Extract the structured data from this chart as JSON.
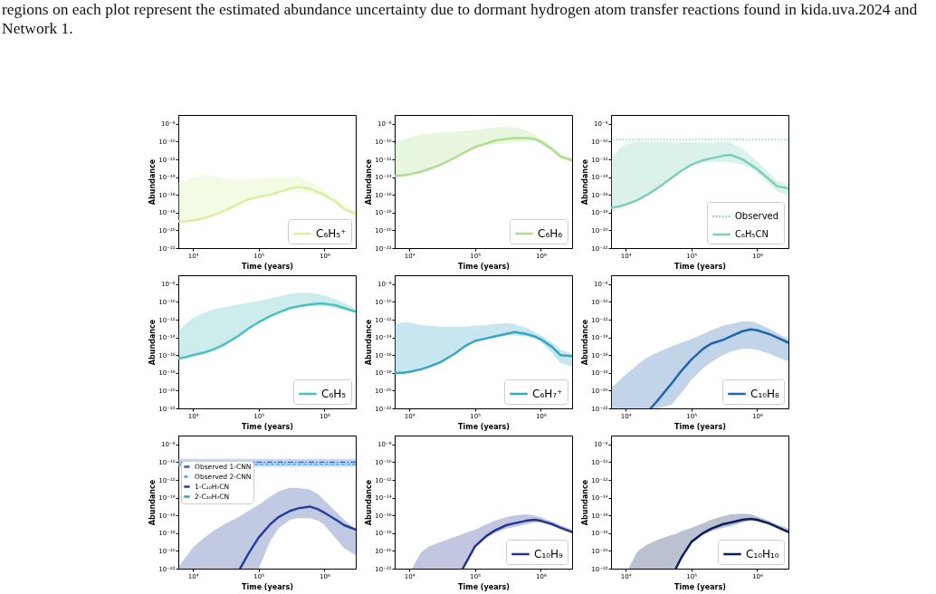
{
  "chart_data": [
    {
      "type": "line",
      "xlabel": "Time (years)",
      "ylabel": "Abundance",
      "log": "xy",
      "legend": "bottom right",
      "annotations": [
        "regions on each plot represent the estimated abundance uncertainty due to dormant hydrogen atom transfer reactions found in kida.uva.2024 and Network 1."
      ],
      "xlim": [
        6000,
        3000000
      ],
      "ylim": [
        1e-22,
        1e-07
      ],
      "xticks": [
        {
          "value": 10000,
          "label": "10⁴"
        },
        {
          "value": 100000,
          "label": "10⁵"
        },
        {
          "value": 1000000,
          "label": "10⁶"
        }
      ],
      "yticks": [
        {
          "value": 1e-22,
          "label": "10⁻²²"
        },
        {
          "value": 1e-20,
          "label": "10⁻²⁰"
        },
        {
          "value": 1e-18,
          "label": "10⁻¹⁸"
        },
        {
          "value": 1e-16,
          "label": "10⁻¹⁶"
        },
        {
          "value": 1e-14,
          "label": "10⁻¹⁴"
        },
        {
          "value": 1e-12,
          "label": "10⁻¹²"
        },
        {
          "value": 1e-10,
          "label": "10⁻¹⁰"
        },
        {
          "value": 1e-08,
          "label": "10⁻⁸"
        }
      ],
      "x": [
        6000,
        8000,
        10000,
        15000,
        20000,
        30000,
        50000,
        70000,
        100000,
        150000,
        200000,
        300000,
        400000,
        600000,
        800000,
        1000000,
        1500000,
        2000000,
        3000000
      ],
      "series": [
        {
          "name": "C₆H₅⁺",
          "color": "#d9f0a3",
          "values": [
            1e-19,
            1e-19,
            1.3e-19,
            2.5e-19,
            5e-19,
            1.6e-18,
            1e-17,
            3.2e-17,
            6.3e-17,
            1e-16,
            2e-16,
            5e-16,
            7.9e-16,
            5e-16,
            2e-16,
            1e-16,
            1.6e-17,
            2.5e-18,
            7.9e-19
          ],
          "lower": [
            1e-19,
            1e-19,
            1.3e-19,
            2.5e-19,
            5e-19,
            1.6e-18,
            1e-17,
            3.2e-17,
            6.3e-17,
            1e-16,
            2e-16,
            2.5e-16,
            2e-16,
            1.6e-16,
            1e-16,
            6.3e-17,
            1e-17,
            1.6e-18,
            5e-19
          ],
          "upper": [
            2.5e-15,
            5e-15,
            1e-14,
            1.6e-14,
            1.3e-14,
            6.3e-15,
            5e-15,
            6.3e-15,
            6.3e-15,
            7.9e-15,
            1e-14,
            1.3e-14,
            1e-14,
            3.2e-15,
            1e-15,
            3.2e-16,
            5e-17,
            6.3e-18,
            1.6e-18
          ]
        }
      ]
    },
    {
      "type": "line",
      "xlabel": "Time (years)",
      "ylabel": "Abundance",
      "log": "xy",
      "legend": "bottom right",
      "xlim": [
        6000,
        3000000
      ],
      "ylim": [
        1e-22,
        1e-07
      ],
      "xticks": [
        {
          "value": 10000,
          "label": "10⁴"
        },
        {
          "value": 100000,
          "label": "10⁵"
        },
        {
          "value": 1000000,
          "label": "10⁶"
        }
      ],
      "yticks": [
        {
          "value": 1e-22,
          "label": "10⁻²²"
        },
        {
          "value": 1e-20,
          "label": "10⁻²⁰"
        },
        {
          "value": 1e-18,
          "label": "10⁻¹⁸"
        },
        {
          "value": 1e-16,
          "label": "10⁻¹⁶"
        },
        {
          "value": 1e-14,
          "label": "10⁻¹⁴"
        },
        {
          "value": 1e-12,
          "label": "10⁻¹²"
        },
        {
          "value": 1e-10,
          "label": "10⁻¹⁰"
        },
        {
          "value": 1e-08,
          "label": "10⁻⁸"
        }
      ],
      "x": [
        6000,
        8000,
        10000,
        15000,
        20000,
        30000,
        50000,
        70000,
        100000,
        150000,
        200000,
        300000,
        400000,
        600000,
        800000,
        1000000,
        1500000,
        2000000,
        3000000
      ],
      "series": [
        {
          "name": "C₆H₆",
          "color": "#addd8e",
          "values": [
            1.3e-14,
            1.6e-14,
            2e-14,
            4e-14,
            7.9e-14,
            2.5e-13,
            1.6e-12,
            6.3e-12,
            2.5e-11,
            6.3e-11,
            1.3e-10,
            2e-10,
            2.5e-10,
            2.5e-10,
            2e-10,
            1e-10,
            1.3e-11,
            2e-12,
            7.9e-13
          ],
          "lower": [
            1.3e-14,
            1.6e-14,
            2e-14,
            4e-14,
            7.9e-14,
            2.5e-13,
            1.6e-12,
            6.3e-12,
            2.5e-11,
            4e-11,
            5e-11,
            6.3e-11,
            7.9e-11,
            1e-10,
            1e-10,
            6.3e-11,
            1e-11,
            1.6e-12,
            5e-13
          ],
          "upper": [
            5e-11,
            1.6e-10,
            3.2e-10,
            6.3e-10,
            7.9e-10,
            1e-09,
            1.3e-09,
            1.6e-09,
            2e-09,
            3.2e-09,
            4e-09,
            5e-09,
            4e-09,
            2e-09,
            6.3e-10,
            2e-10,
            3.2e-11,
            5e-12,
            1.6e-12
          ]
        }
      ]
    },
    {
      "type": "line",
      "xlabel": "Time (years)",
      "ylabel": "Abundance",
      "log": "xy",
      "legend": "bottom right",
      "xlim": [
        6000,
        3000000
      ],
      "ylim": [
        1e-22,
        1e-07
      ],
      "xticks": [
        {
          "value": 10000,
          "label": "10⁴"
        },
        {
          "value": 100000,
          "label": "10⁵"
        },
        {
          "value": 1000000,
          "label": "10⁶"
        }
      ],
      "yticks": [
        {
          "value": 1e-22,
          "label": "10⁻²²"
        },
        {
          "value": 1e-20,
          "label": "10⁻²⁰"
        },
        {
          "value": 1e-18,
          "label": "10⁻¹⁸"
        },
        {
          "value": 1e-16,
          "label": "10⁻¹⁶"
        },
        {
          "value": 1e-14,
          "label": "10⁻¹⁴"
        },
        {
          "value": 1e-12,
          "label": "10⁻¹²"
        },
        {
          "value": 1e-10,
          "label": "10⁻¹⁰"
        },
        {
          "value": 1e-08,
          "label": "10⁻⁸"
        }
      ],
      "x": [
        6000,
        8000,
        10000,
        15000,
        20000,
        30000,
        50000,
        70000,
        100000,
        150000,
        200000,
        300000,
        400000,
        600000,
        800000,
        1000000,
        1500000,
        2000000,
        3000000
      ],
      "ref_lines": [
        {
          "axis": "y",
          "value": 1.7e-10,
          "label": "Observed",
          "color": "#7fcdbb",
          "line_style": "dotted"
        }
      ],
      "series": [
        {
          "name": "C₆H₅CN",
          "color": "#7fcdbb",
          "values": [
            3.2e-18,
            5e-18,
            7.9e-18,
            2.5e-17,
            7.9e-17,
            5e-16,
            7.9e-15,
            5e-14,
            2.5e-13,
            7.9e-13,
            1.3e-12,
            2.5e-12,
            3.2e-12,
            1e-12,
            2.5e-13,
            7.9e-14,
            6.3e-15,
            1e-15,
            5e-16
          ],
          "lower": [
            3.2e-18,
            5e-18,
            7.9e-18,
            2.5e-17,
            7.9e-17,
            5e-16,
            7.9e-15,
            5e-14,
            2.5e-13,
            5e-13,
            5e-13,
            5e-13,
            5e-13,
            2.5e-13,
            1e-13,
            3.2e-14,
            2e-15,
            2.5e-16,
            7.9e-17
          ],
          "upper": [
            1e-12,
            1.6e-11,
            5e-11,
            1e-10,
            1e-10,
            1e-10,
            7.9e-11,
            7.9e-11,
            7.9e-11,
            7.9e-11,
            7.9e-11,
            1e-10,
            7.9e-11,
            1.6e-11,
            2.5e-12,
            6.3e-13,
            3.2e-14,
            4e-15,
            1.6e-15
          ]
        }
      ]
    },
    {
      "type": "line",
      "xlabel": "Time (years)",
      "ylabel": "Abundance",
      "log": "xy",
      "legend": "bottom right",
      "xlim": [
        6000,
        3000000
      ],
      "ylim": [
        1e-22,
        1e-07
      ],
      "xticks": [
        {
          "value": 10000,
          "label": "10⁴"
        },
        {
          "value": 100000,
          "label": "10⁵"
        },
        {
          "value": 1000000,
          "label": "10⁶"
        }
      ],
      "yticks": [
        {
          "value": 1e-22,
          "label": "10⁻²²"
        },
        {
          "value": 1e-20,
          "label": "10⁻²⁰"
        },
        {
          "value": 1e-18,
          "label": "10⁻¹⁸"
        },
        {
          "value": 1e-16,
          "label": "10⁻¹⁶"
        },
        {
          "value": 1e-14,
          "label": "10⁻¹⁴"
        },
        {
          "value": 1e-12,
          "label": "10⁻¹²"
        },
        {
          "value": 1e-10,
          "label": "10⁻¹⁰"
        },
        {
          "value": 1e-08,
          "label": "10⁻⁸"
        }
      ],
      "x": [
        6000,
        8000,
        10000,
        15000,
        20000,
        30000,
        50000,
        70000,
        100000,
        150000,
        200000,
        300000,
        400000,
        600000,
        800000,
        1000000,
        1500000,
        2000000,
        3000000
      ],
      "series": [
        {
          "name": "C₆H₅",
          "color": "#4cc0c0",
          "values": [
            4e-17,
            6.3e-17,
            1e-16,
            2e-16,
            4e-16,
            1.6e-15,
            1.6e-14,
            1e-13,
            5e-13,
            2.5e-12,
            6.3e-12,
            2e-11,
            3.2e-11,
            5e-11,
            6.3e-11,
            6.3e-11,
            4e-11,
            2e-11,
            7.9e-12
          ],
          "lower": [
            4e-17,
            6.3e-17,
            1e-16,
            2e-16,
            4e-16,
            1.6e-15,
            1.6e-14,
            1e-13,
            5e-13,
            2.5e-12,
            6.3e-12,
            1.6e-11,
            2.5e-11,
            3.2e-11,
            3.2e-11,
            3.2e-11,
            2e-11,
            1.3e-11,
            6.3e-12
          ],
          "upper": [
            5e-14,
            4e-13,
            1.6e-12,
            6.3e-12,
            1.3e-11,
            2.5e-11,
            5e-11,
            7.9e-11,
            1.3e-10,
            2.5e-10,
            4e-10,
            7.9e-10,
            1e-09,
            1e-09,
            7.9e-10,
            5e-10,
            2e-10,
            7.9e-11,
            1.6e-11
          ]
        }
      ]
    },
    {
      "type": "line",
      "xlabel": "Time (years)",
      "ylabel": "Abundance",
      "log": "xy",
      "legend": "bottom right",
      "xlim": [
        6000,
        3000000
      ],
      "ylim": [
        1e-22,
        1e-07
      ],
      "xticks": [
        {
          "value": 10000,
          "label": "10⁴"
        },
        {
          "value": 100000,
          "label": "10⁵"
        },
        {
          "value": 1000000,
          "label": "10⁶"
        }
      ],
      "yticks": [
        {
          "value": 1e-22,
          "label": "10⁻²²"
        },
        {
          "value": 1e-20,
          "label": "10⁻²⁰"
        },
        {
          "value": 1e-18,
          "label": "10⁻¹⁸"
        },
        {
          "value": 1e-16,
          "label": "10⁻¹⁶"
        },
        {
          "value": 1e-14,
          "label": "10⁻¹⁴"
        },
        {
          "value": 1e-12,
          "label": "10⁻¹²"
        },
        {
          "value": 1e-10,
          "label": "10⁻¹⁰"
        },
        {
          "value": 1e-08,
          "label": "10⁻⁸"
        }
      ],
      "x": [
        6000,
        8000,
        10000,
        15000,
        20000,
        30000,
        50000,
        70000,
        100000,
        150000,
        200000,
        300000,
        400000,
        600000,
        800000,
        1000000,
        1500000,
        2000000,
        3000000
      ],
      "series": [
        {
          "name": "C₆H₇⁺",
          "color": "#35a6c8",
          "values": [
            1e-18,
            1e-18,
            1.3e-18,
            2.5e-18,
            5e-18,
            1.6e-17,
            1.6e-16,
            1e-15,
            4e-15,
            7.9e-15,
            1.3e-14,
            2.5e-14,
            4e-14,
            2.5e-14,
            1.3e-14,
            6.3e-15,
            7.9e-16,
            1e-16,
            7.9e-17
          ],
          "lower": [
            1e-18,
            1e-18,
            1.3e-18,
            2.5e-18,
            5e-18,
            1.6e-17,
            1.6e-16,
            1e-15,
            4e-15,
            7.9e-15,
            1.3e-14,
            1.6e-14,
            1.6e-14,
            1.3e-14,
            7.9e-15,
            3.2e-15,
            1.6e-16,
            1.3e-17,
            5e-18
          ],
          "upper": [
            2.5e-13,
            5e-13,
            5e-13,
            2.5e-13,
            2e-13,
            1.6e-13,
            1.6e-13,
            1.6e-13,
            2e-13,
            2.5e-13,
            3.2e-13,
            4e-13,
            3.2e-13,
            1.3e-13,
            4e-14,
            1.6e-14,
            2.5e-15,
            4e-16,
            1.3e-16
          ]
        }
      ]
    },
    {
      "type": "line",
      "xlabel": "Time (years)",
      "ylabel": "Abundance",
      "log": "xy",
      "legend": "bottom right",
      "xlim": [
        6000,
        3000000
      ],
      "ylim": [
        1e-22,
        1e-07
      ],
      "xticks": [
        {
          "value": 10000,
          "label": "10⁴"
        },
        {
          "value": 100000,
          "label": "10⁵"
        },
        {
          "value": 1000000,
          "label": "10⁶"
        }
      ],
      "yticks": [
        {
          "value": 1e-22,
          "label": "10⁻²²"
        },
        {
          "value": 1e-20,
          "label": "10⁻²⁰"
        },
        {
          "value": 1e-18,
          "label": "10⁻¹⁸"
        },
        {
          "value": 1e-16,
          "label": "10⁻¹⁶"
        },
        {
          "value": 1e-14,
          "label": "10⁻¹⁴"
        },
        {
          "value": 1e-12,
          "label": "10⁻¹²"
        },
        {
          "value": 1e-10,
          "label": "10⁻¹⁰"
        },
        {
          "value": 1e-08,
          "label": "10⁻⁸"
        }
      ],
      "x": [
        6000,
        8000,
        10000,
        15000,
        20000,
        24000,
        30000,
        50000,
        70000,
        100000,
        150000,
        200000,
        300000,
        400000,
        600000,
        800000,
        1000000,
        1500000,
        2000000,
        3000000
      ],
      "series": [
        {
          "name": "C₁₀H₈",
          "color": "#2166ac",
          "values": [
            null,
            null,
            null,
            null,
            null,
            1e-22,
            6.3e-22,
            6.3e-20,
            1.6e-18,
            3.2e-17,
            5e-16,
            2e-15,
            5e-15,
            1.3e-14,
            5e-14,
            7.9e-14,
            6.3e-14,
            2.5e-14,
            1e-14,
            2.5e-15
          ],
          "lower": [
            1e-22,
            1e-22,
            1e-22,
            1e-22,
            1e-22,
            1e-22,
            1e-22,
            2.5e-22,
            5e-21,
            1.6e-19,
            3.2e-18,
            1.6e-17,
            1e-16,
            2.5e-16,
            5e-16,
            5e-16,
            4e-16,
            1.6e-16,
            6.3e-17,
            2e-17
          ],
          "upper": [
            2e-20,
            1.3e-19,
            6.3e-19,
            7.9e-18,
            4e-17,
            7.9e-17,
            2e-16,
            1e-15,
            2.5e-15,
            6.3e-15,
            2.5e-14,
            6.3e-14,
            2e-13,
            3.2e-13,
            6.3e-13,
            6.3e-13,
            4e-13,
            1e-13,
            3.2e-14,
            6.3e-15
          ]
        }
      ]
    },
    {
      "type": "line",
      "xlabel": "Time (years)",
      "ylabel": "Abundance",
      "log": "xy",
      "legend": "top left",
      "xlim": [
        6000,
        3000000
      ],
      "ylim": [
        1e-22,
        1e-07
      ],
      "xticks": [
        {
          "value": 10000,
          "label": "10⁴"
        },
        {
          "value": 100000,
          "label": "10⁵"
        },
        {
          "value": 1000000,
          "label": "10⁶"
        }
      ],
      "yticks": [
        {
          "value": 1e-22,
          "label": "10⁻²²"
        },
        {
          "value": 1e-20,
          "label": "10⁻²⁰"
        },
        {
          "value": 1e-18,
          "label": "10⁻¹⁸"
        },
        {
          "value": 1e-16,
          "label": "10⁻¹⁶"
        },
        {
          "value": 1e-14,
          "label": "10⁻¹⁴"
        },
        {
          "value": 1e-12,
          "label": "10⁻¹²"
        },
        {
          "value": 1e-10,
          "label": "10⁻¹⁰"
        },
        {
          "value": 1e-08,
          "label": "10⁻⁸"
        }
      ],
      "x": [
        6000,
        8000,
        10000,
        15000,
        20000,
        30000,
        52000,
        70000,
        100000,
        150000,
        200000,
        300000,
        400000,
        600000,
        800000,
        1000000,
        1500000,
        2000000,
        3000000
      ],
      "bands": [
        {
          "axis": "y",
          "from": 3e-11,
          "to": 2.3e-10,
          "color": "#8fb0e8"
        }
      ],
      "ref_lines": [
        {
          "axis": "y",
          "value": 1e-10,
          "label": "Observed 1-CNN",
          "color": "#3a5ab8",
          "line_style": "dashdot"
        },
        {
          "axis": "y",
          "value": 6e-11,
          "label": "Observed 2-CNN",
          "color": "#3fa9e0",
          "line_style": "dashed"
        }
      ],
      "series": [
        {
          "name": "1-C₁₀H₇CN",
          "color": "#253f9a",
          "values": [
            null,
            null,
            null,
            null,
            null,
            null,
            1e-22,
            5e-21,
            3.2e-19,
            1e-17,
            6.3e-17,
            3.2e-16,
            6.3e-16,
            1e-15,
            5e-16,
            2e-16,
            3.2e-17,
            7.9e-18,
            2.5e-18
          ],
          "lower": [
            1e-22,
            1e-22,
            1e-22,
            1e-22,
            1e-22,
            1e-22,
            1e-22,
            1e-22,
            1e-22,
            1.3e-19,
            3.2e-18,
            3.2e-17,
            5e-17,
            5e-17,
            2.5e-17,
            7.9e-18,
            2.5e-19,
            2e-20,
            3.2e-21
          ],
          "upper": [
            1.6e-22,
            2.5e-21,
            2.5e-20,
            3.2e-19,
            1.6e-18,
            1e-17,
            7.9e-17,
            3.2e-16,
            1.6e-15,
            1.3e-14,
            5e-14,
            1.3e-13,
            1.3e-13,
            7.9e-14,
            2.5e-14,
            5e-15,
            2.5e-16,
            3.2e-17,
            2.5e-18
          ]
        },
        {
          "name": "2-C₁₀H₇CN",
          "color": "#2b9fd0",
          "values": [
            null,
            null,
            null,
            null,
            null,
            null,
            null,
            null,
            null,
            null,
            null,
            null,
            null,
            null,
            null,
            null,
            null,
            null,
            null
          ]
        }
      ]
    },
    {
      "type": "line",
      "xlabel": "Time (years)",
      "ylabel": "Abundance",
      "log": "xy",
      "legend": "bottom right",
      "xlim": [
        6000,
        3000000
      ],
      "ylim": [
        1e-22,
        1e-07
      ],
      "xticks": [
        {
          "value": 10000,
          "label": "10⁴"
        },
        {
          "value": 100000,
          "label": "10⁵"
        },
        {
          "value": 1000000,
          "label": "10⁶"
        }
      ],
      "yticks": [
        {
          "value": 1e-22,
          "label": "10⁻²²"
        },
        {
          "value": 1e-20,
          "label": "10⁻²⁰"
        },
        {
          "value": 1e-18,
          "label": "10⁻¹⁸"
        },
        {
          "value": 1e-16,
          "label": "10⁻¹⁶"
        },
        {
          "value": 1e-14,
          "label": "10⁻¹⁴"
        },
        {
          "value": 1e-12,
          "label": "10⁻¹²"
        },
        {
          "value": 1e-10,
          "label": "10⁻¹⁰"
        },
        {
          "value": 1e-08,
          "label": "10⁻⁸"
        }
      ],
      "x": [
        11000,
        15000,
        20000,
        30000,
        50000,
        65000,
        100000,
        150000,
        200000,
        300000,
        400000,
        600000,
        800000,
        1000000,
        1500000,
        2000000,
        3000000
      ],
      "series": [
        {
          "name": "C₁₀H₉",
          "color": "#253494",
          "values": [
            null,
            null,
            null,
            null,
            null,
            1e-22,
            3.2e-20,
            5e-19,
            2e-18,
            7.9e-18,
            1.3e-17,
            2.5e-17,
            3.2e-17,
            2.5e-17,
            1e-17,
            4e-18,
            1.3e-18
          ],
          "lower": [
            1e-22,
            1e-22,
            1e-22,
            1e-22,
            1e-22,
            1e-22,
            2.5e-20,
            3.2e-19,
            1e-18,
            3.2e-18,
            5e-18,
            1e-17,
            1.6e-17,
            1.6e-17,
            7.9e-18,
            3.2e-18,
            1e-18
          ],
          "upper": [
            1e-22,
            6.3e-21,
            3.2e-20,
            1e-19,
            4e-19,
            7.9e-19,
            2.5e-18,
            1e-17,
            2.5e-17,
            6.3e-17,
            1e-16,
            1.3e-16,
            1e-16,
            6.3e-17,
            2e-17,
            7.9e-18,
            2.5e-18
          ]
        }
      ]
    },
    {
      "type": "line",
      "xlabel": "Time (years)",
      "ylabel": "Abundance",
      "log": "xy",
      "legend": "bottom right",
      "xlim": [
        6000,
        3000000
      ],
      "ylim": [
        1e-22,
        1e-07
      ],
      "xticks": [
        {
          "value": 10000,
          "label": "10⁴"
        },
        {
          "value": 100000,
          "label": "10⁵"
        },
        {
          "value": 1000000,
          "label": "10⁶"
        }
      ],
      "yticks": [
        {
          "value": 1e-22,
          "label": "10⁻²²"
        },
        {
          "value": 1e-20,
          "label": "10⁻²⁰"
        },
        {
          "value": 1e-18,
          "label": "10⁻¹⁸"
        },
        {
          "value": 1e-16,
          "label": "10⁻¹⁶"
        },
        {
          "value": 1e-14,
          "label": "10⁻¹⁴"
        },
        {
          "value": 1e-12,
          "label": "10⁻¹²"
        },
        {
          "value": 1e-10,
          "label": "10⁻¹⁰"
        },
        {
          "value": 1e-08,
          "label": "10⁻⁸"
        }
      ],
      "x": [
        11000,
        15000,
        20000,
        30000,
        50000,
        58000,
        70000,
        100000,
        150000,
        200000,
        300000,
        400000,
        600000,
        800000,
        1000000,
        1500000,
        2000000,
        3000000
      ],
      "series": [
        {
          "name": "C₁₀H₁₀",
          "color": "#0b1f5a",
          "values": [
            null,
            null,
            null,
            null,
            null,
            1e-22,
            1.6e-21,
            1e-19,
            1e-18,
            3.2e-18,
            1e-17,
            1.6e-17,
            3.2e-17,
            4e-17,
            3.2e-17,
            1.3e-17,
            5e-18,
            1.3e-18
          ],
          "lower": [
            1e-22,
            1e-22,
            1e-22,
            1e-22,
            1e-22,
            1e-22,
            1e-21,
            6.3e-20,
            6.3e-19,
            1.6e-18,
            4e-18,
            6.3e-18,
            1.6e-17,
            2.5e-17,
            2e-17,
            1e-17,
            4e-18,
            1e-18
          ],
          "upper": [
            1e-22,
            7.9e-21,
            4e-20,
            1.6e-19,
            6.3e-19,
            7.9e-19,
            1.6e-18,
            4e-18,
            1.3e-17,
            3.2e-17,
            7.9e-17,
            1.3e-16,
            1.6e-16,
            1.3e-16,
            7.9e-17,
            2.5e-17,
            1e-17,
            3.2e-18
          ]
        }
      ]
    }
  ]
}
